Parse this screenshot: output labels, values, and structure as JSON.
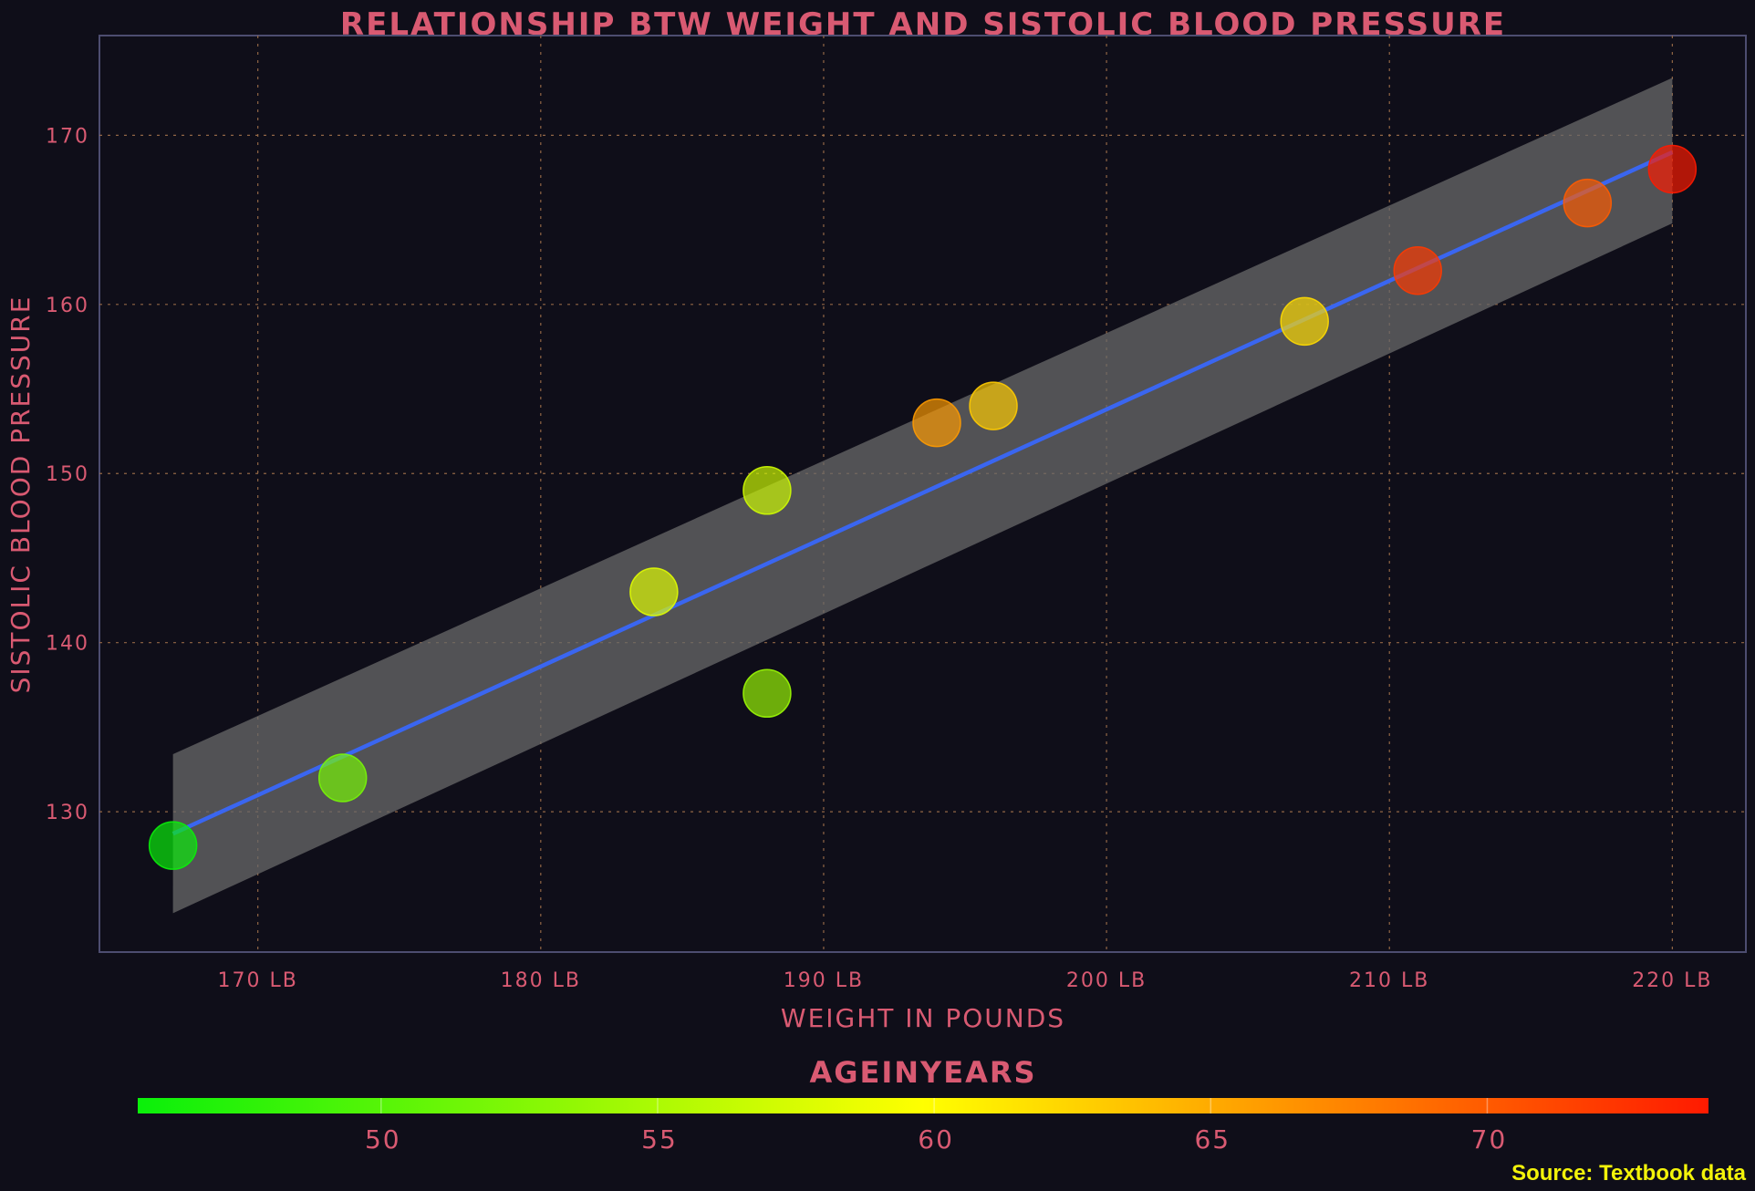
{
  "chart_data": {
    "type": "scatter",
    "title": "RELATIONSHIP BTW WEIGHT AND SISTOLIC BLOOD PRESSURE",
    "xlabel": "WEIGHT IN POUNDS",
    "ylabel": "SISTOLIC BLOOD PRESSURE",
    "x_ticks": [
      {
        "value": 170,
        "label": "170 LB"
      },
      {
        "value": 180,
        "label": "180 LB"
      },
      {
        "value": 190,
        "label": "190 LB"
      },
      {
        "value": 200,
        "label": "200 LB"
      },
      {
        "value": 210,
        "label": "210 LB"
      },
      {
        "value": 220,
        "label": "220 LB"
      }
    ],
    "y_ticks": [
      {
        "value": 130,
        "label": "130"
      },
      {
        "value": 140,
        "label": "140"
      },
      {
        "value": 150,
        "label": "150"
      },
      {
        "value": 160,
        "label": "160"
      },
      {
        "value": 170,
        "label": "170"
      }
    ],
    "xlim": [
      164.4,
      222.6
    ],
    "ylim": [
      121.7,
      175.9
    ],
    "grid": true,
    "points": [
      {
        "x": 167,
        "y": 128,
        "age": 45
      },
      {
        "x": 173,
        "y": 132,
        "age": 52
      },
      {
        "x": 184,
        "y": 143,
        "age": 58
      },
      {
        "x": 188,
        "y": 149,
        "age": 57
      },
      {
        "x": 188,
        "y": 137,
        "age": 54
      },
      {
        "x": 194,
        "y": 153,
        "age": 66
      },
      {
        "x": 196,
        "y": 154,
        "age": 63
      },
      {
        "x": 207,
        "y": 159,
        "age": 62
      },
      {
        "x": 211,
        "y": 162,
        "age": 72
      },
      {
        "x": 217,
        "y": 166,
        "age": 70
      },
      {
        "x": 220,
        "y": 168,
        "age": 74
      }
    ],
    "regression": {
      "x_range": [
        167,
        220
      ],
      "y_start": 128.7,
      "y_end": 169.0,
      "ci_lower": [
        124.0,
        164.8
      ],
      "ci_upper": [
        133.4,
        173.4
      ]
    },
    "colorbar": {
      "title": "AGEINYEARS",
      "ticks": [
        {
          "value": 50,
          "label": "50"
        },
        {
          "value": 55,
          "label": "55"
        },
        {
          "value": 60,
          "label": "60"
        },
        {
          "value": 65,
          "label": "65"
        },
        {
          "value": 70,
          "label": "70"
        }
      ],
      "range": [
        45.6,
        74.0
      ],
      "colors": [
        "#0af00a",
        "#ffff00",
        "#ff1a00"
      ]
    },
    "source": "Source: Textbook data",
    "colors": {
      "background": "#0f0e19",
      "text": "#d95a72",
      "line": "#3a66f0",
      "band": "#6a6a6a",
      "grid": "#a0704a"
    }
  }
}
